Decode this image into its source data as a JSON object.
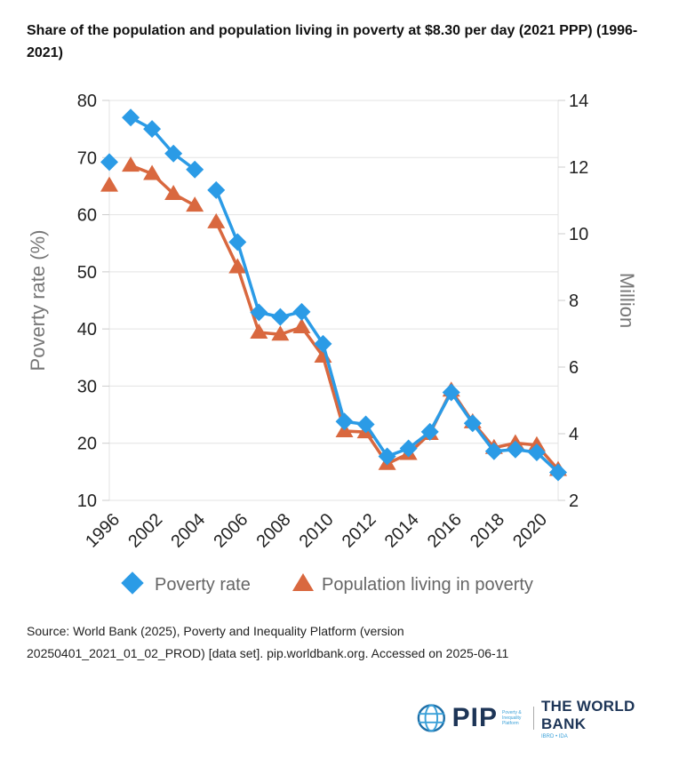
{
  "title": "Share of the population and population living in poverty at $8.30 per day (2021 PPP) (1996-2021)",
  "chart_data": {
    "type": "line",
    "title": "Share of the population and population living in poverty at $8.30 per day (2021 PPP) (1996-2021)",
    "categories": [
      "1996",
      "2001",
      "2002",
      "2003",
      "2004",
      "2005",
      "2006",
      "2007",
      "2008",
      "2009",
      "2010",
      "2011",
      "2012",
      "2013",
      "2014",
      "2015",
      "2016",
      "2017",
      "2018",
      "2019",
      "2020",
      "2021"
    ],
    "xtick_labels": [
      "1996",
      "2002",
      "2004",
      "2006",
      "2008",
      "2010",
      "2012",
      "2014",
      "2016",
      "2018",
      "2020"
    ],
    "segment_breaks_after": [
      "1996",
      "2004"
    ],
    "ylabel": "Poverty rate (%)",
    "ylim": [
      10,
      80
    ],
    "yticks": [
      10,
      20,
      30,
      40,
      50,
      60,
      70,
      80
    ],
    "y2label": "Million",
    "y2lim": [
      2,
      14
    ],
    "y2ticks": [
      2,
      4,
      6,
      8,
      10,
      12,
      14
    ],
    "grid": true,
    "legend_position": "bottom",
    "series": [
      {
        "name": "Poverty rate",
        "axis": "left",
        "marker": "diamond",
        "color": "#2b9be6",
        "values": [
          69.2,
          77.0,
          75.0,
          70.7,
          67.9,
          64.3,
          55.2,
          42.9,
          42.1,
          43.0,
          37.4,
          23.8,
          23.3,
          17.7,
          19.1,
          22.0,
          28.9,
          23.5,
          18.6,
          18.9,
          18.4,
          14.9
        ]
      },
      {
        "name": "Population living in poverty",
        "axis": "right",
        "marker": "triangle",
        "color": "#d9683f",
        "values": [
          11.45,
          12.05,
          11.8,
          11.2,
          10.85,
          10.35,
          9.0,
          7.04,
          6.98,
          7.2,
          6.32,
          4.08,
          4.05,
          3.1,
          3.4,
          4.0,
          5.3,
          4.35,
          3.58,
          3.72,
          3.66,
          2.92
        ]
      }
    ]
  },
  "source": {
    "line1": "Source: World Bank (2025), Poverty and Inequality Platform (version",
    "line2": "20250401_2021_01_02_PROD) [data set]. pip.worldbank.org. Accessed on 2025-06-11"
  },
  "logo": {
    "pip": "PIP",
    "pip_sub": "Poverty & Inequality Platform",
    "org": "THE WORLD BANK",
    "org_sub": "IBRD • IDA"
  }
}
